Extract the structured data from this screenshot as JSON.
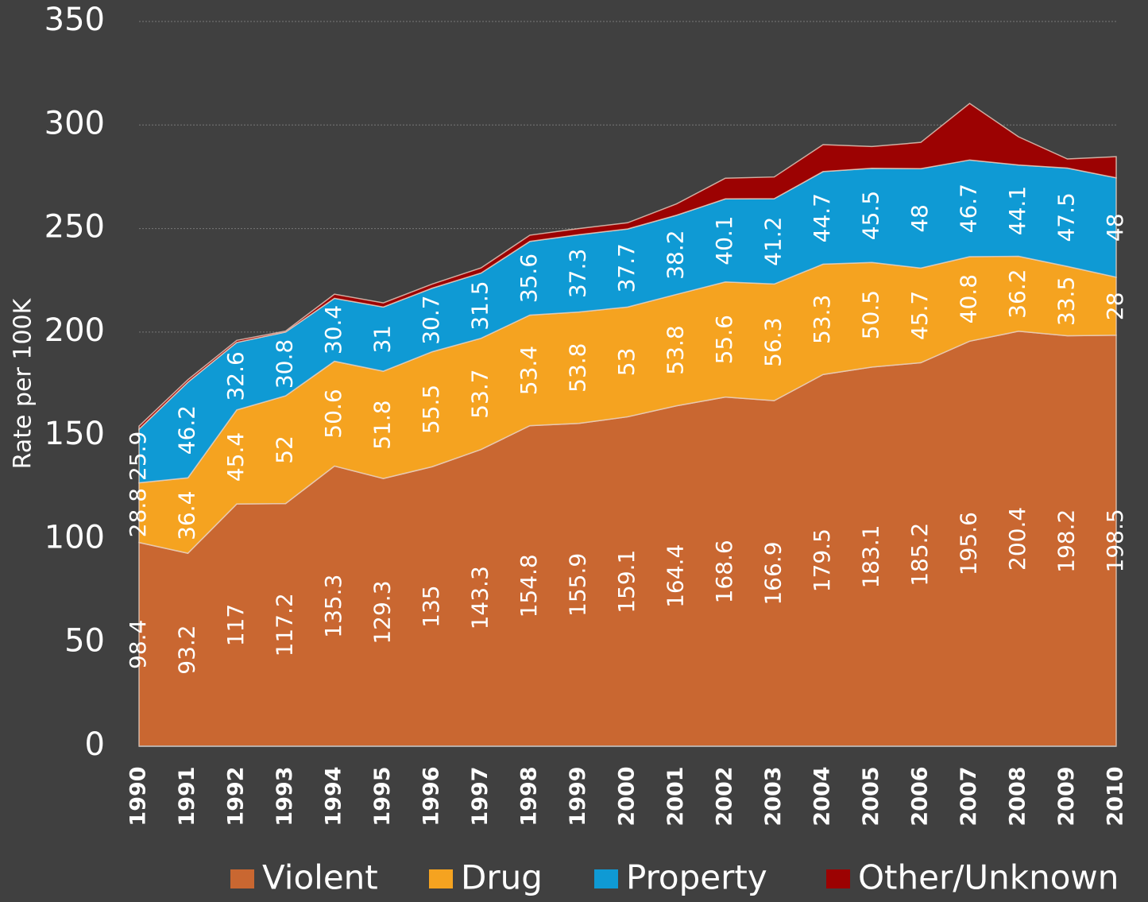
{
  "chart_data": {
    "type": "stacked_area",
    "y_label": "Rate per 100K",
    "categories": [
      "1990",
      "1991",
      "1992",
      "1993",
      "1994",
      "1995",
      "1996",
      "1997",
      "1998",
      "1999",
      "2000",
      "2001",
      "2002",
      "2003",
      "2004",
      "2005",
      "2006",
      "2007",
      "2008",
      "2009",
      "2010"
    ],
    "series": [
      {
        "name": "Violent",
        "color": "#c96731",
        "values": [
          98.4,
          93.2,
          117,
          117.2,
          135.3,
          129.3,
          135,
          143.3,
          154.8,
          155.9,
          159.1,
          164.4,
          168.6,
          166.9,
          179.5,
          183.1,
          185.2,
          195.6,
          200.4,
          198.2,
          198.5
        ]
      },
      {
        "name": "Drug",
        "color": "#f5a320",
        "values": [
          28.8,
          36.4,
          45.4,
          52,
          50.6,
          51.8,
          55.5,
          53.7,
          53.4,
          53.8,
          53,
          53.8,
          55.6,
          56.3,
          53.3,
          50.5,
          45.7,
          40.8,
          36.2,
          33.5,
          28
        ]
      },
      {
        "name": "Property",
        "color": "#0f9ad4",
        "values": [
          25.9,
          46.2,
          32.6,
          30.8,
          30.4,
          31,
          30.7,
          31.5,
          35.6,
          37.3,
          37.7,
          38.2,
          40.1,
          41.2,
          44.7,
          45.5,
          48,
          46.7,
          44.1,
          47.5,
          48
        ]
      },
      {
        "name": "Other/Unknown",
        "color": "#9c0202",
        "values": [
          1.5,
          1.2,
          1,
          0.5,
          2,
          2,
          2,
          2.5,
          3,
          3,
          3,
          5.5,
          10,
          10.5,
          13,
          10.5,
          12.7,
          27.3,
          13.6,
          4.4,
          10.2
        ]
      }
    ],
    "labeled_series": [
      0,
      1,
      2
    ],
    "ylim": [
      0,
      350
    ],
    "yticks": [
      0,
      50,
      100,
      150,
      200,
      250,
      300,
      350
    ],
    "grid": true
  }
}
